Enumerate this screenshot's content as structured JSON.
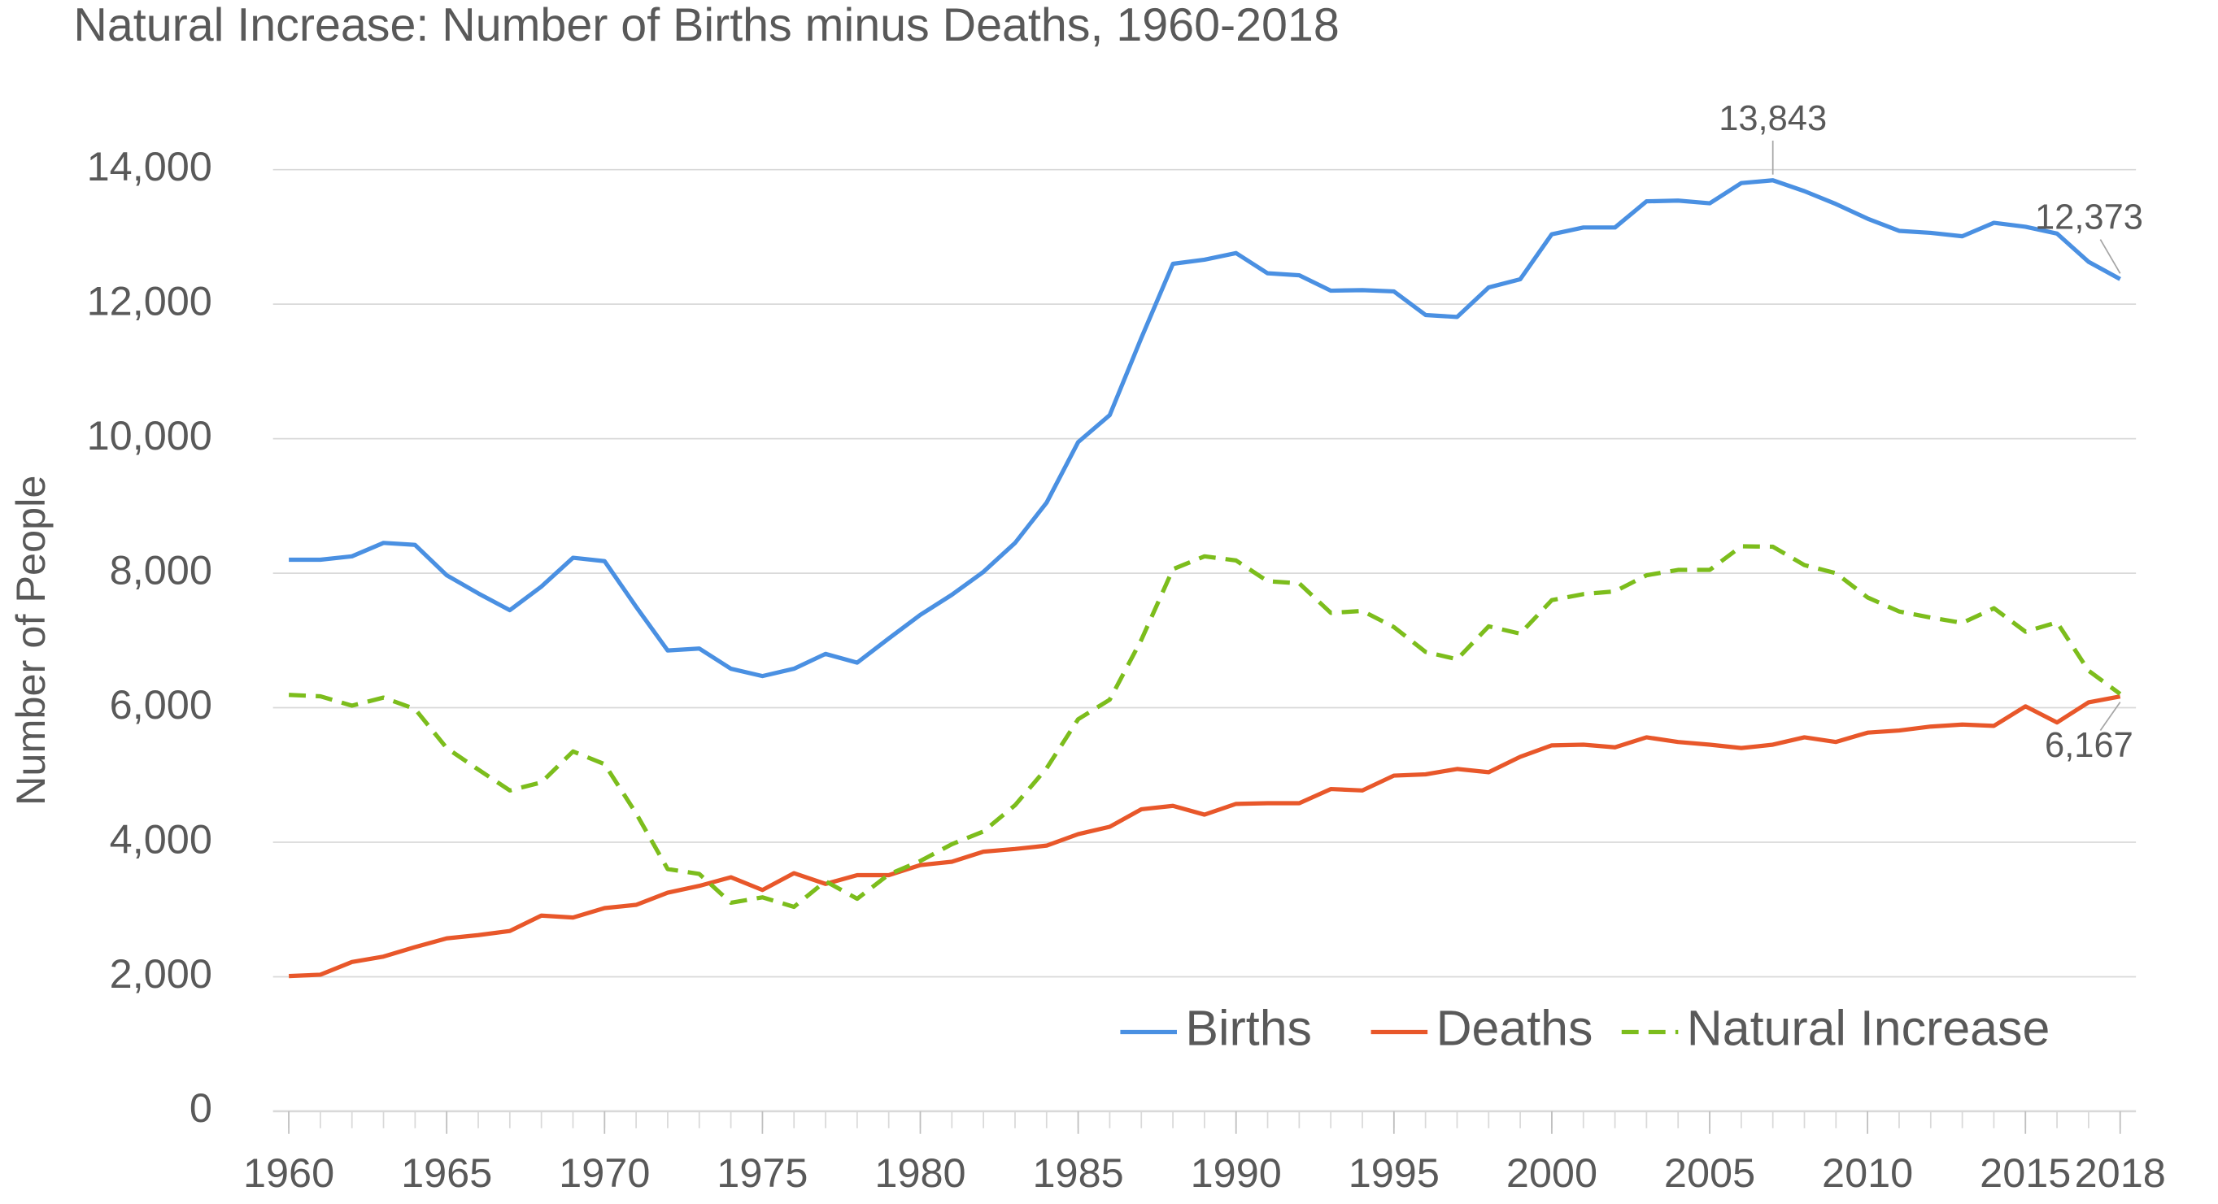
{
  "chart_data": {
    "type": "line",
    "title": "Natural Increase: Number of Births minus Deaths, 1960-2018",
    "y_label": "Number of People",
    "x": [
      1960,
      1961,
      1962,
      1963,
      1964,
      1965,
      1966,
      1967,
      1968,
      1969,
      1970,
      1971,
      1972,
      1973,
      1974,
      1975,
      1976,
      1977,
      1978,
      1979,
      1980,
      1981,
      1982,
      1983,
      1984,
      1985,
      1986,
      1987,
      1988,
      1989,
      1990,
      1991,
      1992,
      1993,
      1994,
      1995,
      1996,
      1997,
      1998,
      1999,
      2000,
      2001,
      2002,
      2003,
      2004,
      2005,
      2006,
      2007,
      2008,
      2009,
      2010,
      2011,
      2012,
      2013,
      2014,
      2015,
      2016,
      2017,
      2018
    ],
    "series": [
      {
        "name": "Births",
        "color": "#4a90e2",
        "dash": false,
        "values": [
          8200,
          8200,
          8250,
          8450,
          8420,
          7970,
          7700,
          7450,
          7800,
          8230,
          8180,
          7500,
          6850,
          6880,
          6580,
          6470,
          6580,
          6800,
          6670,
          7030,
          7380,
          7680,
          8020,
          8450,
          9050,
          9950,
          10350,
          11500,
          12600,
          12660,
          12760,
          12460,
          12430,
          12200,
          12210,
          12190,
          11840,
          11810,
          12250,
          12370,
          13040,
          13140,
          13140,
          13530,
          13540,
          13500,
          13800,
          13843,
          13680,
          13490,
          13270,
          13090,
          13060,
          13010,
          13210,
          13150,
          13050,
          12630,
          12373
        ],
        "value_labels": [
          null,
          null,
          null,
          null,
          null,
          null,
          null,
          null,
          null,
          null,
          null,
          null,
          null,
          null,
          null,
          null,
          null,
          null,
          null,
          null,
          null,
          null,
          null,
          null,
          null,
          null,
          null,
          null,
          null,
          null,
          null,
          null,
          null,
          null,
          null,
          null,
          null,
          null,
          null,
          null,
          null,
          null,
          null,
          null,
          null,
          null,
          null,
          "13,843",
          null,
          null,
          null,
          null,
          null,
          null,
          null,
          null,
          null,
          null,
          "12,373"
        ]
      },
      {
        "name": "Deaths",
        "color": "#e8572a",
        "dash": false,
        "values": [
          2010,
          2030,
          2220,
          2300,
          2440,
          2570,
          2620,
          2680,
          2910,
          2880,
          3020,
          3070,
          3250,
          3350,
          3480,
          3290,
          3540,
          3380,
          3510,
          3510,
          3660,
          3710,
          3860,
          3900,
          3950,
          4120,
          4230,
          4490,
          4540,
          4410,
          4570,
          4580,
          4580,
          4790,
          4770,
          4990,
          5010,
          5090,
          5040,
          5270,
          5440,
          5450,
          5410,
          5560,
          5490,
          5450,
          5400,
          5450,
          5560,
          5490,
          5630,
          5660,
          5720,
          5750,
          5730,
          6020,
          5780,
          6080,
          6167
        ],
        "value_labels": [
          null,
          null,
          null,
          null,
          null,
          null,
          null,
          null,
          null,
          null,
          null,
          null,
          null,
          null,
          null,
          null,
          null,
          null,
          null,
          null,
          null,
          null,
          null,
          null,
          null,
          null,
          null,
          null,
          null,
          null,
          null,
          null,
          null,
          null,
          null,
          null,
          null,
          null,
          null,
          null,
          null,
          null,
          null,
          null,
          null,
          null,
          null,
          null,
          null,
          null,
          null,
          null,
          null,
          null,
          null,
          null,
          null,
          null,
          "6,167"
        ]
      },
      {
        "name": "Natural Increase",
        "color": "#7cbd1c",
        "dash": true,
        "values": [
          6190,
          6170,
          6030,
          6150,
          5980,
          5400,
          5080,
          4770,
          4890,
          5350,
          5160,
          4430,
          3600,
          3530,
          3100,
          3180,
          3040,
          3420,
          3160,
          3520,
          3720,
          3970,
          4160,
          4550,
          5100,
          5830,
          6120,
          7010,
          8060,
          8250,
          8190,
          7880,
          7850,
          7410,
          7440,
          7200,
          6830,
          6720,
          7210,
          7100,
          7600,
          7690,
          7730,
          7970,
          8050,
          8050,
          8400,
          8393,
          8120,
          8000,
          7640,
          7430,
          7340,
          7260,
          7480,
          7130,
          7270,
          6550,
          6206
        ]
      }
    ],
    "xlim": [
      1959.5,
      2018.5
    ],
    "xticks": [
      1960,
      1965,
      1970,
      1975,
      1980,
      1985,
      1990,
      1995,
      2000,
      2005,
      2010,
      2015,
      2018
    ],
    "ylim": [
      0,
      14000
    ],
    "yticks": [
      0,
      {
        "value": 2000,
        "label": "2,000"
      },
      {
        "value": 4000,
        "label": "4,000"
      },
      {
        "value": 6000,
        "label": "6,000"
      },
      {
        "value": 8000,
        "label": "8,000"
      },
      {
        "value": 10000,
        "label": "10,000"
      },
      {
        "value": 12000,
        "label": "12,000"
      },
      {
        "value": 14000,
        "label": "14,000"
      }
    ],
    "grid": true,
    "legend": "bottom-right"
  }
}
